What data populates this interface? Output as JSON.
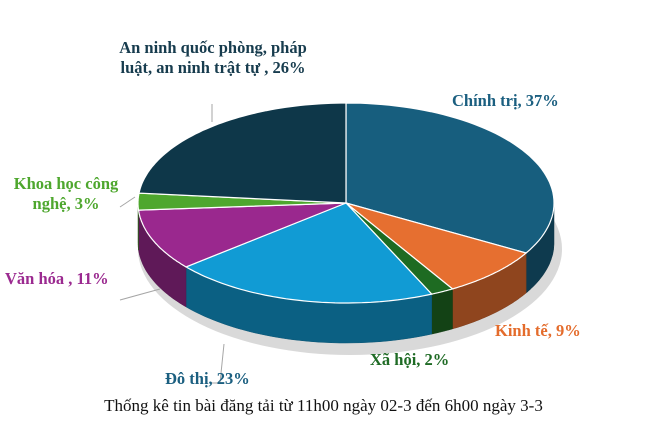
{
  "chart_data": {
    "type": "pie",
    "style": "3d",
    "title": "Thống kê tin bài đăng tải từ 11h00 ngày 02-3 đến 6h00 ngày 3-3",
    "slices": [
      {
        "label": "Chính trị, 37%",
        "value": 37,
        "color": "#175e7e",
        "text_color": "#1b5f80"
      },
      {
        "label": "Kinh tế, 9%",
        "value": 9,
        "color": "#e66f30",
        "text_color": "#e46c2c"
      },
      {
        "label": "Xã hội, 2%",
        "value": 2,
        "color": "#1e6b22",
        "text_color": "#1f6b25"
      },
      {
        "label": "Đô thị, 23%",
        "value": 23,
        "color": "#119bd4",
        "text_color": "#1b5f80"
      },
      {
        "label": "Văn hóa , 11%",
        "value": 11,
        "color": "#9a288e",
        "text_color": "#9b2a90"
      },
      {
        "label": "Khoa học công nghệ, 3%",
        "value": 3,
        "color": "#4ea72e",
        "text_color": "#4ea72e"
      },
      {
        "label": "An ninh quốc phòng, pháp luật, an ninh trật tự , 26%",
        "value": 26,
        "color": "#0e3749",
        "text_color": "#173c4e"
      }
    ],
    "legend": "none",
    "data_labels": "outside"
  }
}
